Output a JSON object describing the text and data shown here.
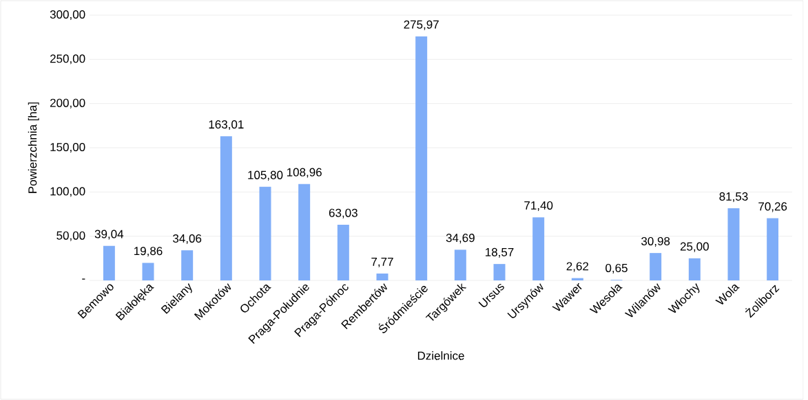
{
  "chart_data": {
    "type": "bar",
    "xlabel": "Dzielnice",
    "ylabel": "Powierzchnia [ha]",
    "categories": [
      "Bemowo",
      "Białołęka",
      "Bielany",
      "Mokotów",
      "Ochota",
      "Praga-Południe",
      "Praga-Północ",
      "Rembertów",
      "Śródmieście",
      "Targówek",
      "Ursus",
      "Ursynów",
      "Wawer",
      "Wesoła",
      "Wilanów",
      "Włochy",
      "Wola",
      "Żoliborz"
    ],
    "values": [
      39.04,
      19.86,
      34.06,
      163.01,
      105.8,
      108.96,
      63.03,
      7.77,
      275.97,
      34.69,
      18.57,
      71.4,
      2.62,
      0.65,
      30.98,
      25.0,
      81.53,
      70.26
    ],
    "value_labels": [
      "39,04",
      "19,86",
      "34,06",
      "163,01",
      "105,80",
      "108,96",
      "63,03",
      "7,77",
      "275,97",
      "34,69",
      "18,57",
      "71,40",
      "2,62",
      "0,65",
      "30,98",
      "25,00",
      "81,53",
      "70,26"
    ],
    "color": "#7fadf8",
    "ylim": [
      0,
      300
    ],
    "yticks": [
      {
        "value": 0,
        "label": "-"
      },
      {
        "value": 50,
        "label": "50,00"
      },
      {
        "value": 100,
        "label": "100,00"
      },
      {
        "value": 150,
        "label": "150,00"
      },
      {
        "value": 200,
        "label": "200,00"
      },
      {
        "value": 250,
        "label": "250,00"
      },
      {
        "value": 300,
        "label": "300,00"
      }
    ],
    "grid": "y"
  }
}
